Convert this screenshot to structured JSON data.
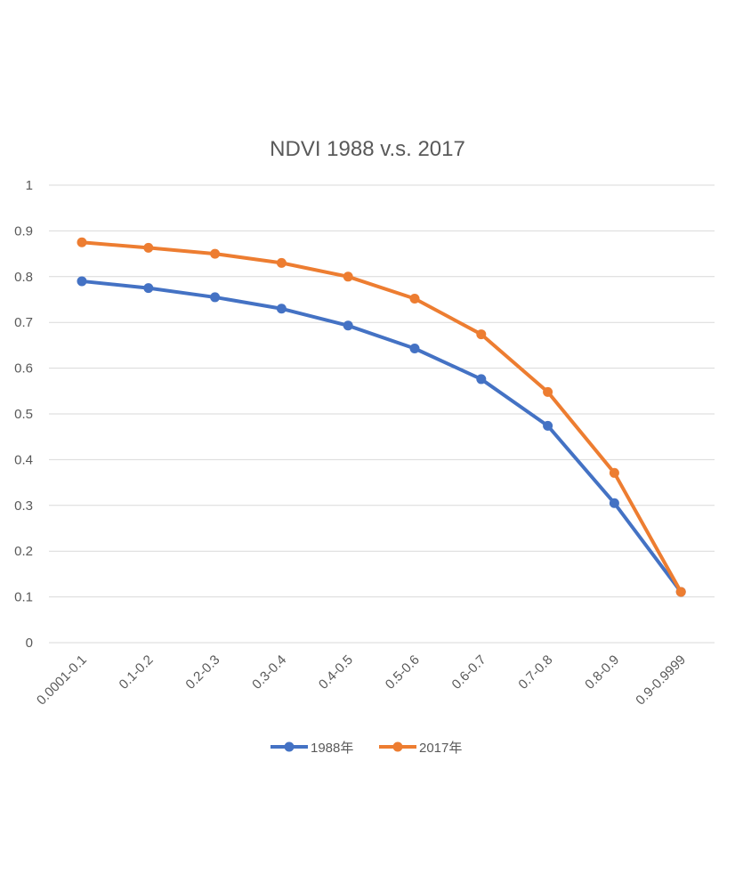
{
  "chart_data": {
    "type": "line",
    "title": "NDVI 1988 v.s. 2017",
    "xlabel": "",
    "ylabel": "",
    "categories": [
      "0.0001-0.1",
      "0.1-0.2",
      "0.2-0.3",
      "0.3-0.4",
      "0.4-0.5",
      "0.5-0.6",
      "0.6-0.7",
      "0.7-0.8",
      "0.8-0.9",
      "0.9-0.9999"
    ],
    "yticks": [
      "0",
      "0.1",
      "0.2",
      "0.3",
      "0.4",
      "0.5",
      "0.6",
      "0.7",
      "0.8",
      "0.9",
      "1"
    ],
    "ylim": [
      0,
      1
    ],
    "grid": true,
    "legend_position": "bottom",
    "series": [
      {
        "name": "1988年",
        "color": "#4472C4",
        "values": [
          0.79,
          0.775,
          0.755,
          0.73,
          0.693,
          0.643,
          0.576,
          0.474,
          0.305,
          0.111
        ]
      },
      {
        "name": "2017年",
        "color": "#ED7D31",
        "values": [
          0.875,
          0.863,
          0.85,
          0.83,
          0.8,
          0.752,
          0.674,
          0.548,
          0.371,
          0.111
        ]
      }
    ]
  }
}
